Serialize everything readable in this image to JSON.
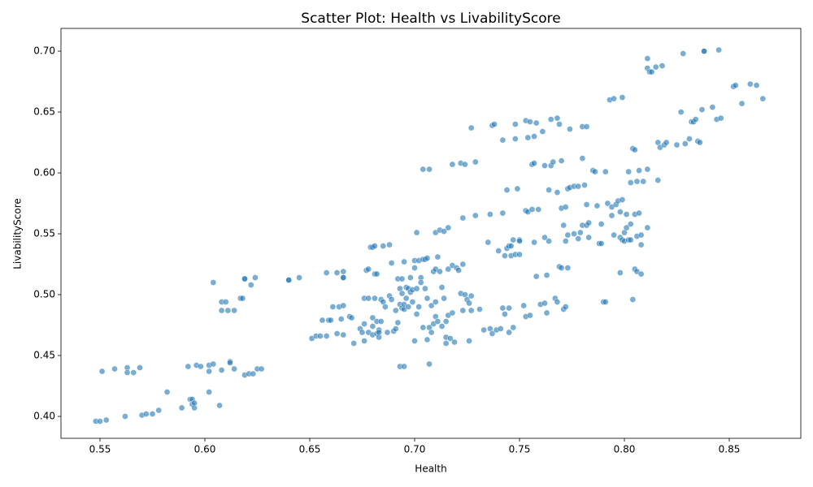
{
  "chart_data": {
    "type": "scatter",
    "title": "Scatter Plot: Health vs LivabilityScore",
    "x_label": "Health",
    "y_label": "LivabilityScore",
    "color": "#1f77b4",
    "xlim": [
      0.5314,
      0.8841
    ],
    "ylim": [
      0.382,
      0.7187
    ],
    "xticks": [
      0.55,
      {
        "value": 0.6,
        "label": "0.60"
      },
      0.65,
      {
        "value": 0.7,
        "label": "0.70"
      },
      0.75,
      {
        "value": 0.8,
        "label": "0.80"
      },
      0.85
    ],
    "yticks": [
      {
        "value": 0.4,
        "label": "0.40"
      },
      0.45,
      {
        "value": 0.5,
        "label": "0.50"
      },
      0.55,
      {
        "value": 0.6,
        "label": "0.60"
      },
      0.65,
      {
        "value": 0.7,
        "label": "0.70"
      }
    ],
    "x": [
      0.548,
      0.55,
      0.553,
      0.551,
      0.557,
      0.563,
      0.563,
      0.566,
      0.569,
      0.562,
      0.57,
      0.572,
      0.575,
      0.578,
      0.582,
      0.589,
      0.592,
      0.593,
      0.594,
      0.594,
      0.595,
      0.595,
      0.596,
      0.598,
      0.602,
      0.602,
      0.604,
      0.602,
      0.604,
      0.607,
      0.608,
      0.608,
      0.608,
      0.61,
      0.611,
      0.612,
      0.612,
      0.614,
      0.614,
      0.617,
      0.618,
      0.619,
      0.619,
      0.619,
      0.621,
      0.622,
      0.623,
      0.624,
      0.625,
      0.627,
      0.64,
      0.64,
      0.645,
      0.651,
      0.653,
      0.655,
      0.656,
      0.658,
      0.658,
      0.659,
      0.66,
      0.661,
      0.663,
      0.663,
      0.664,
      0.665,
      0.666,
      0.666,
      0.666,
      0.666,
      0.666,
      0.669,
      0.67,
      0.671,
      0.674,
      0.675,
      0.676,
      0.676,
      0.676,
      0.677,
      0.678,
      0.678,
      0.678,
      0.679,
      0.68,
      0.68,
      0.68,
      0.68,
      0.681,
      0.681,
      0.681,
      0.682,
      0.682,
      0.682,
      0.683,
      0.683,
      0.683,
      0.684,
      0.684,
      0.685,
      0.685,
      0.686,
      0.687,
      0.688,
      0.688,
      0.689,
      0.689,
      0.69,
      0.691,
      0.691,
      0.692,
      0.692,
      0.693,
      0.693,
      0.693,
      0.694,
      0.694,
      0.694,
      0.695,
      0.695,
      0.695,
      0.695,
      0.696,
      0.696,
      0.697,
      0.697,
      0.698,
      0.698,
      0.699,
      0.699,
      0.7,
      0.7,
      0.7,
      0.701,
      0.701,
      0.701,
      0.702,
      0.702,
      0.703,
      0.703,
      0.704,
      0.704,
      0.704,
      0.705,
      0.705,
      0.706,
      0.706,
      0.706,
      0.707,
      0.707,
      0.707,
      0.708,
      0.708,
      0.709,
      0.709,
      0.71,
      0.71,
      0.71,
      0.71,
      0.711,
      0.711,
      0.712,
      0.712,
      0.713,
      0.713,
      0.714,
      0.714,
      0.715,
      0.715,
      0.715,
      0.716,
      0.716,
      0.716,
      0.717,
      0.718,
      0.718,
      0.718,
      0.719,
      0.72,
      0.721,
      0.722,
      0.722,
      0.723,
      0.723,
      0.723,
      0.724,
      0.724,
      0.725,
      0.726,
      0.726,
      0.727,
      0.727,
      0.727,
      0.729,
      0.729,
      0.731,
      0.733,
      0.735,
      0.736,
      0.736,
      0.737,
      0.737,
      0.738,
      0.739,
      0.74,
      0.741,
      0.742,
      0.742,
      0.742,
      0.743,
      0.743,
      0.744,
      0.744,
      0.745,
      0.745,
      0.745,
      0.746,
      0.746,
      0.747,
      0.747,
      0.748,
      0.748,
      0.748,
      0.749,
      0.75,
      0.75,
      0.75,
      0.752,
      0.753,
      0.753,
      0.753,
      0.754,
      0.754,
      0.755,
      0.755,
      0.756,
      0.756,
      0.757,
      0.757,
      0.757,
      0.758,
      0.758,
      0.759,
      0.76,
      0.761,
      0.762,
      0.762,
      0.762,
      0.763,
      0.763,
      0.764,
      0.764,
      0.765,
      0.765,
      0.766,
      0.767,
      0.768,
      0.768,
      0.768,
      0.769,
      0.769,
      0.77,
      0.77,
      0.77,
      0.771,
      0.771,
      0.772,
      0.772,
      0.772,
      0.773,
      0.773,
      0.773,
      0.774,
      0.774,
      0.776,
      0.776,
      0.778,
      0.778,
      0.779,
      0.78,
      0.78,
      0.78,
      0.781,
      0.782,
      0.782,
      0.782,
      0.783,
      0.783,
      0.785,
      0.786,
      0.787,
      0.788,
      0.789,
      0.789,
      0.79,
      0.791,
      0.791,
      0.792,
      0.793,
      0.794,
      0.794,
      0.795,
      0.795,
      0.796,
      0.797,
      0.798,
      0.798,
      0.798,
      0.799,
      0.799,
      0.799,
      0.8,
      0.8,
      0.801,
      0.801,
      0.802,
      0.802,
      0.803,
      0.803,
      0.803,
      0.804,
      0.804,
      0.805,
      0.805,
      0.805,
      0.806,
      0.806,
      0.806,
      0.807,
      0.807,
      0.808,
      0.808,
      0.808,
      0.809,
      0.811,
      0.811,
      0.811,
      0.811,
      0.812,
      0.813,
      0.815,
      0.816,
      0.816,
      0.817,
      0.818,
      0.819,
      0.82,
      0.825,
      0.827,
      0.828,
      0.829,
      0.831,
      0.832,
      0.833,
      0.834,
      0.835,
      0.836,
      0.837,
      0.838,
      0.838,
      0.842,
      0.844,
      0.845,
      0.846,
      0.852,
      0.853,
      0.856,
      0.86,
      0.863,
      0.866
    ],
    "values": [
      0.396,
      0.396,
      0.397,
      0.437,
      0.439,
      0.44,
      0.436,
      0.436,
      0.44,
      0.4,
      0.401,
      0.402,
      0.402,
      0.405,
      0.42,
      0.407,
      0.441,
      0.414,
      0.414,
      0.41,
      0.407,
      0.411,
      0.442,
      0.441,
      0.442,
      0.437,
      0.443,
      0.42,
      0.51,
      0.409,
      0.438,
      0.487,
      0.494,
      0.494,
      0.487,
      0.445,
      0.444,
      0.487,
      0.439,
      0.497,
      0.497,
      0.513,
      0.513,
      0.434,
      0.435,
      0.508,
      0.435,
      0.514,
      0.439,
      0.439,
      0.512,
      0.512,
      0.514,
      0.464,
      0.466,
      0.466,
      0.479,
      0.466,
      0.518,
      0.479,
      0.479,
      0.49,
      0.518,
      0.468,
      0.49,
      0.48,
      0.514,
      0.514,
      0.519,
      0.467,
      0.491,
      0.482,
      0.481,
      0.46,
      0.472,
      0.469,
      0.497,
      0.476,
      0.462,
      0.52,
      0.521,
      0.497,
      0.469,
      0.539,
      0.539,
      0.481,
      0.474,
      0.467,
      0.517,
      0.54,
      0.497,
      0.517,
      0.478,
      0.468,
      0.471,
      0.465,
      0.469,
      0.478,
      0.496,
      0.54,
      0.494,
      0.49,
      0.469,
      0.541,
      0.499,
      0.526,
      0.496,
      0.47,
      0.472,
      0.487,
      0.477,
      0.513,
      0.441,
      0.492,
      0.505,
      0.489,
      0.513,
      0.501,
      0.527,
      0.488,
      0.492,
      0.441,
      0.506,
      0.497,
      0.505,
      0.49,
      0.514,
      0.502,
      0.504,
      0.494,
      0.528,
      0.462,
      0.522,
      0.484,
      0.551,
      0.505,
      0.528,
      0.49,
      0.514,
      0.51,
      0.529,
      0.473,
      0.603,
      0.505,
      0.529,
      0.53,
      0.463,
      0.497,
      0.603,
      0.443,
      0.473,
      0.469,
      0.491,
      0.519,
      0.476,
      0.521,
      0.494,
      0.482,
      0.551,
      0.531,
      0.478,
      0.553,
      0.519,
      0.474,
      0.506,
      0.552,
      0.497,
      0.465,
      0.46,
      0.478,
      0.483,
      0.521,
      0.555,
      0.464,
      0.524,
      0.607,
      0.485,
      0.461,
      0.522,
      0.52,
      0.608,
      0.501,
      0.487,
      0.525,
      0.563,
      0.607,
      0.5,
      0.496,
      0.493,
      0.462,
      0.487,
      0.637,
      0.499,
      0.609,
      0.565,
      0.488,
      0.471,
      0.543,
      0.566,
      0.472,
      0.639,
      0.468,
      0.64,
      0.471,
      0.536,
      0.472,
      0.627,
      0.567,
      0.489,
      0.532,
      0.484,
      0.586,
      0.538,
      0.54,
      0.489,
      0.469,
      0.532,
      0.54,
      0.545,
      0.473,
      0.533,
      0.628,
      0.64,
      0.587,
      0.545,
      0.544,
      0.533,
      0.491,
      0.482,
      0.569,
      0.643,
      0.629,
      0.568,
      0.642,
      0.483,
      0.607,
      0.57,
      0.608,
      0.63,
      0.543,
      0.515,
      0.641,
      0.57,
      0.492,
      0.634,
      0.547,
      0.606,
      0.493,
      0.485,
      0.516,
      0.544,
      0.586,
      0.644,
      0.606,
      0.609,
      0.497,
      0.645,
      0.584,
      0.494,
      0.64,
      0.523,
      0.522,
      0.61,
      0.571,
      0.488,
      0.557,
      0.544,
      0.572,
      0.49,
      0.549,
      0.522,
      0.587,
      0.636,
      0.588,
      0.55,
      0.589,
      0.589,
      0.546,
      0.551,
      0.638,
      0.557,
      0.612,
      0.59,
      0.574,
      0.638,
      0.557,
      0.547,
      0.559,
      0.602,
      0.601,
      0.573,
      0.542,
      0.558,
      0.542,
      0.494,
      0.601,
      0.494,
      0.575,
      0.66,
      0.572,
      0.565,
      0.549,
      0.661,
      0.574,
      0.577,
      0.518,
      0.547,
      0.568,
      0.662,
      0.578,
      0.545,
      0.551,
      0.544,
      0.555,
      0.566,
      0.601,
      0.545,
      0.558,
      0.592,
      0.545,
      0.62,
      0.496,
      0.566,
      0.521,
      0.619,
      0.519,
      0.593,
      0.548,
      0.602,
      0.567,
      0.549,
      0.541,
      0.517,
      0.593,
      0.555,
      0.603,
      0.694,
      0.686,
      0.683,
      0.683,
      0.687,
      0.594,
      0.625,
      0.621,
      0.688,
      0.623,
      0.625,
      0.623,
      0.65,
      0.698,
      0.624,
      0.628,
      0.642,
      0.642,
      0.644,
      0.626,
      0.625,
      0.652,
      0.7,
      0.7,
      0.654,
      0.644,
      0.701,
      0.645,
      0.671,
      0.672,
      0.657,
      0.673,
      0.672,
      0.661
    ]
  }
}
